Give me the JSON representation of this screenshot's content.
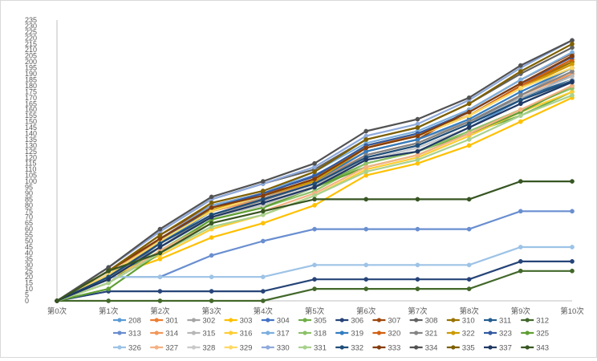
{
  "chart_data": {
    "type": "line",
    "title": "",
    "xlabel": "",
    "ylabel": "",
    "categories": [
      "第0次",
      "第1次",
      "第2次",
      "第3次",
      "第4次",
      "第5次",
      "第6次",
      "第7次",
      "第8次",
      "第9次",
      "第10次"
    ],
    "ylim": [
      0,
      235
    ],
    "ytick_step": 5,
    "grid": false,
    "legend_position": "bottom",
    "series": [
      {
        "name": "208",
        "color": "#5b9bd5",
        "values": [
          0,
          20,
          50,
          75,
          90,
          105,
          118,
          128,
          145,
          168,
          190
        ]
      },
      {
        "name": "301",
        "color": "#ed7d31",
        "values": [
          0,
          25,
          50,
          78,
          88,
          102,
          130,
          138,
          155,
          178,
          200
        ]
      },
      {
        "name": "302",
        "color": "#a5a5a5",
        "values": [
          0,
          22,
          48,
          75,
          86,
          100,
          125,
          135,
          150,
          172,
          195
        ]
      },
      {
        "name": "303",
        "color": "#ffc000",
        "values": [
          0,
          20,
          35,
          53,
          65,
          80,
          105,
          115,
          130,
          150,
          170
        ]
      },
      {
        "name": "304",
        "color": "#4472c4",
        "values": [
          0,
          25,
          52,
          78,
          90,
          105,
          128,
          138,
          155,
          180,
          205
        ]
      },
      {
        "name": "305",
        "color": "#70ad47",
        "values": [
          0,
          15,
          45,
          70,
          80,
          95,
          115,
          125,
          140,
          155,
          175
        ]
      },
      {
        "name": "306",
        "color": "#264478",
        "values": [
          0,
          8,
          8,
          8,
          8,
          18,
          18,
          18,
          18,
          33,
          33
        ]
      },
      {
        "name": "307",
        "color": "#9e480e",
        "values": [
          0,
          25,
          55,
          80,
          90,
          100,
          125,
          135,
          160,
          185,
          207
        ]
      },
      {
        "name": "308",
        "color": "#636363",
        "values": [
          0,
          28,
          58,
          85,
          98,
          110,
          135,
          145,
          165,
          190,
          212
        ]
      },
      {
        "name": "310",
        "color": "#997300",
        "values": [
          0,
          22,
          50,
          78,
          88,
          102,
          130,
          140,
          155,
          180,
          200
        ]
      },
      {
        "name": "311",
        "color": "#255e91",
        "values": [
          0,
          18,
          48,
          72,
          85,
          98,
          122,
          132,
          150,
          170,
          185
        ]
      },
      {
        "name": "312",
        "color": "#43682b",
        "values": [
          0,
          0,
          0,
          0,
          0,
          10,
          10,
          10,
          10,
          25,
          25
        ]
      },
      {
        "name": "313",
        "color": "#698ed0",
        "values": [
          0,
          20,
          20,
          38,
          50,
          60,
          60,
          60,
          60,
          75,
          75
        ]
      },
      {
        "name": "314",
        "color": "#f1975a",
        "values": [
          0,
          22,
          48,
          75,
          85,
          100,
          122,
          132,
          150,
          172,
          190
        ]
      },
      {
        "name": "315",
        "color": "#b7b7b7",
        "values": [
          0,
          20,
          45,
          72,
          82,
          96,
          120,
          130,
          148,
          170,
          188
        ]
      },
      {
        "name": "316",
        "color": "#ffcd33",
        "values": [
          0,
          20,
          38,
          60,
          72,
          88,
          110,
          120,
          138,
          158,
          175
        ]
      },
      {
        "name": "317",
        "color": "#7cafdd",
        "values": [
          0,
          25,
          52,
          80,
          90,
          108,
          132,
          142,
          160,
          185,
          208
        ]
      },
      {
        "name": "318",
        "color": "#8cc168",
        "values": [
          0,
          15,
          42,
          68,
          78,
          92,
          115,
          125,
          142,
          160,
          178
        ]
      },
      {
        "name": "319",
        "color": "#327dc2",
        "values": [
          0,
          20,
          48,
          75,
          88,
          100,
          125,
          135,
          152,
          175,
          195
        ]
      },
      {
        "name": "320",
        "color": "#d26012",
        "values": [
          0,
          25,
          52,
          78,
          88,
          102,
          128,
          138,
          155,
          180,
          202
        ]
      },
      {
        "name": "321",
        "color": "#848484",
        "values": [
          0,
          20,
          45,
          72,
          84,
          98,
          122,
          132,
          150,
          172,
          192
        ]
      },
      {
        "name": "322",
        "color": "#cc9a00",
        "values": [
          0,
          22,
          50,
          76,
          88,
          100,
          128,
          138,
          155,
          178,
          198
        ]
      },
      {
        "name": "323",
        "color": "#335aa1",
        "values": [
          0,
          22,
          50,
          78,
          90,
          104,
          130,
          140,
          158,
          182,
          204
        ]
      },
      {
        "name": "325",
        "color": "#5f9e34",
        "values": [
          0,
          10,
          40,
          68,
          78,
          95,
          112,
          122,
          140,
          158,
          180
        ]
      },
      {
        "name": "326",
        "color": "#9dc3e6",
        "values": [
          0,
          20,
          20,
          20,
          20,
          30,
          30,
          30,
          30,
          45,
          45
        ]
      },
      {
        "name": "327",
        "color": "#f4b183",
        "values": [
          0,
          15,
          42,
          65,
          75,
          90,
          112,
          122,
          140,
          160,
          180
        ]
      },
      {
        "name": "328",
        "color": "#c9c9c9",
        "values": [
          0,
          18,
          45,
          70,
          80,
          95,
          118,
          128,
          145,
          165,
          185
        ]
      },
      {
        "name": "329",
        "color": "#ffd966",
        "values": [
          0,
          22,
          50,
          75,
          88,
          102,
          128,
          138,
          155,
          178,
          195
        ]
      },
      {
        "name": "330",
        "color": "#8faadc",
        "values": [
          0,
          28,
          58,
          85,
          98,
          112,
          138,
          148,
          168,
          195,
          218
        ]
      },
      {
        "name": "331",
        "color": "#a9d18e",
        "values": [
          0,
          15,
          40,
          62,
          72,
          88,
          108,
          118,
          135,
          155,
          172
        ]
      },
      {
        "name": "332",
        "color": "#1f4e79",
        "values": [
          0,
          20,
          48,
          72,
          85,
          98,
          120,
          130,
          148,
          168,
          184
        ]
      },
      {
        "name": "333",
        "color": "#843c0c",
        "values": [
          0,
          25,
          52,
          78,
          88,
          102,
          128,
          138,
          158,
          182,
          205
        ]
      },
      {
        "name": "334",
        "color": "#525252",
        "values": [
          0,
          28,
          60,
          87,
          100,
          115,
          142,
          152,
          170,
          197,
          218
        ]
      },
      {
        "name": "335",
        "color": "#7f6000",
        "values": [
          0,
          25,
          55,
          82,
          92,
          108,
          135,
          145,
          165,
          192,
          215
        ]
      },
      {
        "name": "337",
        "color": "#203864",
        "values": [
          0,
          18,
          45,
          70,
          82,
          95,
          118,
          125,
          145,
          165,
          183
        ]
      },
      {
        "name": "343",
        "color": "#375623",
        "values": [
          0,
          25,
          40,
          65,
          75,
          85,
          85,
          85,
          85,
          100,
          100
        ]
      }
    ]
  }
}
